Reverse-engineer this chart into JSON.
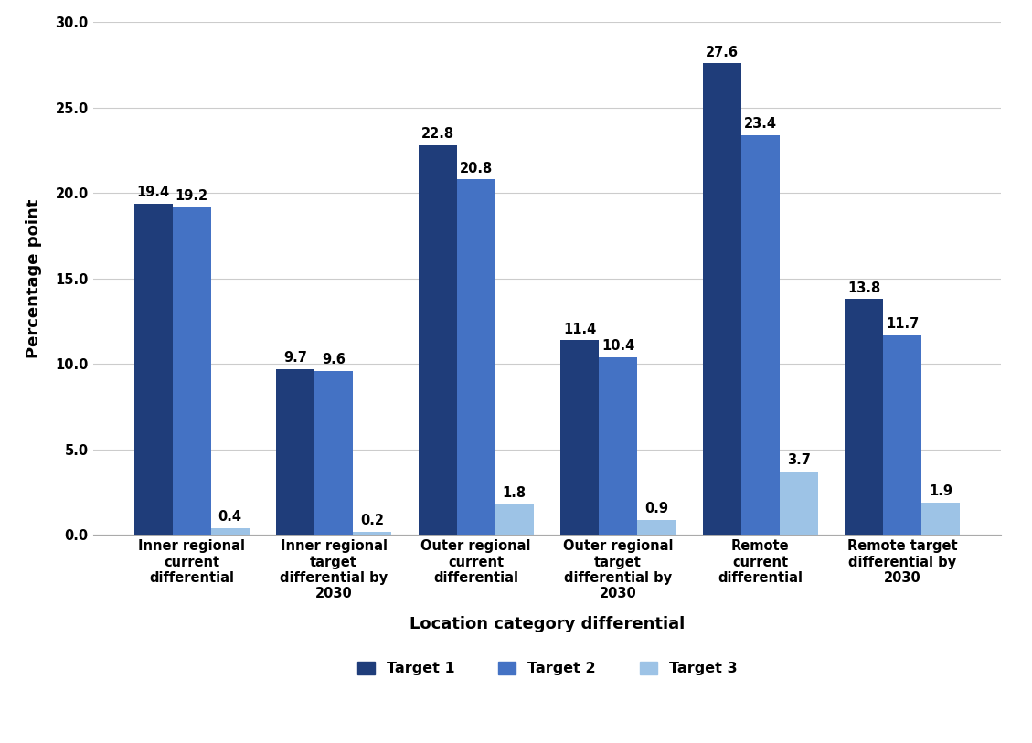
{
  "categories": [
    "Inner regional\ncurrent\ndifferential",
    "Inner regional\ntarget\ndifferential by\n2030",
    "Outer regional\ncurrent\ndifferential",
    "Outer regional\ntarget\ndifferential by\n2030",
    "Remote\ncurrent\ndifferential",
    "Remote target\ndifferential by\n2030"
  ],
  "target1": [
    19.4,
    9.7,
    22.8,
    11.4,
    27.6,
    13.8
  ],
  "target2": [
    19.2,
    9.6,
    20.8,
    10.4,
    23.4,
    11.7
  ],
  "target3": [
    0.4,
    0.2,
    1.8,
    0.9,
    3.7,
    1.9
  ],
  "color_target1": "#1F3D7A",
  "color_target2": "#4472C4",
  "color_target3": "#9DC3E6",
  "ylabel": "Percentage point",
  "xlabel": "Location category differential",
  "ylim": [
    0,
    30.0
  ],
  "yticks": [
    0.0,
    5.0,
    10.0,
    15.0,
    20.0,
    25.0,
    30.0
  ],
  "legend_labels": [
    "Target 1",
    "Target 2",
    "Target 3"
  ],
  "bar_width": 0.27,
  "label_fontsize": 10.5,
  "axis_label_fontsize": 13,
  "tick_fontsize": 10.5,
  "legend_fontsize": 11.5
}
